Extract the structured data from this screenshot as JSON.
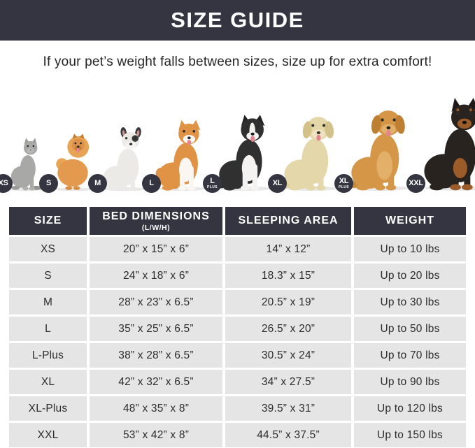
{
  "palette": {
    "navy": "#343541",
    "row_gray": "#e5e5e5",
    "text_dark": "#2d2d2d"
  },
  "header": {
    "title": "SIZE GUIDE",
    "subtitle": "If your pet’s weight falls between sizes, size up for extra comfort!"
  },
  "pets": {
    "items": [
      {
        "badge": "XS",
        "badge_sub": "",
        "icon": "cat-icon"
      },
      {
        "badge": "S",
        "badge_sub": "",
        "icon": "pomeranian-icon"
      },
      {
        "badge": "M",
        "badge_sub": "",
        "icon": "french-bulldog-icon"
      },
      {
        "badge": "L",
        "badge_sub": "",
        "icon": "shiba-inu-icon"
      },
      {
        "badge": "L",
        "badge_sub": "PLUS",
        "icon": "border-collie-icon"
      },
      {
        "badge": "XL",
        "badge_sub": "",
        "icon": "labrador-icon"
      },
      {
        "badge": "XL",
        "badge_sub": "PLUS",
        "icon": "golden-retriever-icon"
      },
      {
        "badge": "XXL",
        "badge_sub": "",
        "icon": "doberman-icon"
      }
    ]
  },
  "table": {
    "columns": [
      {
        "label": "SIZE",
        "sub": ""
      },
      {
        "label": "BED DIMENSIONS",
        "sub": "(L/W/H)"
      },
      {
        "label": "SLEEPING AREA",
        "sub": ""
      },
      {
        "label": "WEIGHT",
        "sub": ""
      }
    ],
    "rows": [
      [
        "XS",
        "20” x 15” x 6”",
        "14” x 12”",
        "Up to 10 lbs"
      ],
      [
        "S",
        "24” x 18” x 6”",
        "18.3” x 15”",
        "Up to 20 lbs"
      ],
      [
        "M",
        "28” x 23” x 6.5”",
        "20.5” x 19”",
        "Up to 30 lbs"
      ],
      [
        "L",
        "35” x 25” x 6.5”",
        "26.5” x 20”",
        "Up to 50 lbs"
      ],
      [
        "L-Plus",
        "38” x 28” x 6.5”",
        "30.5” x 24”",
        "Up to 70 lbs"
      ],
      [
        "XL",
        "42” x 32” x 6.5”",
        "34” x 27.5”",
        "Up to 90 lbs"
      ],
      [
        "XL-Plus",
        "48” x 35” x 8”",
        "39.5” x 31”",
        "Up to 120 lbs"
      ],
      [
        "XXL",
        "53” x 42” x 8”",
        "44.5” x 37.5”",
        "Up to 150 lbs"
      ]
    ]
  }
}
